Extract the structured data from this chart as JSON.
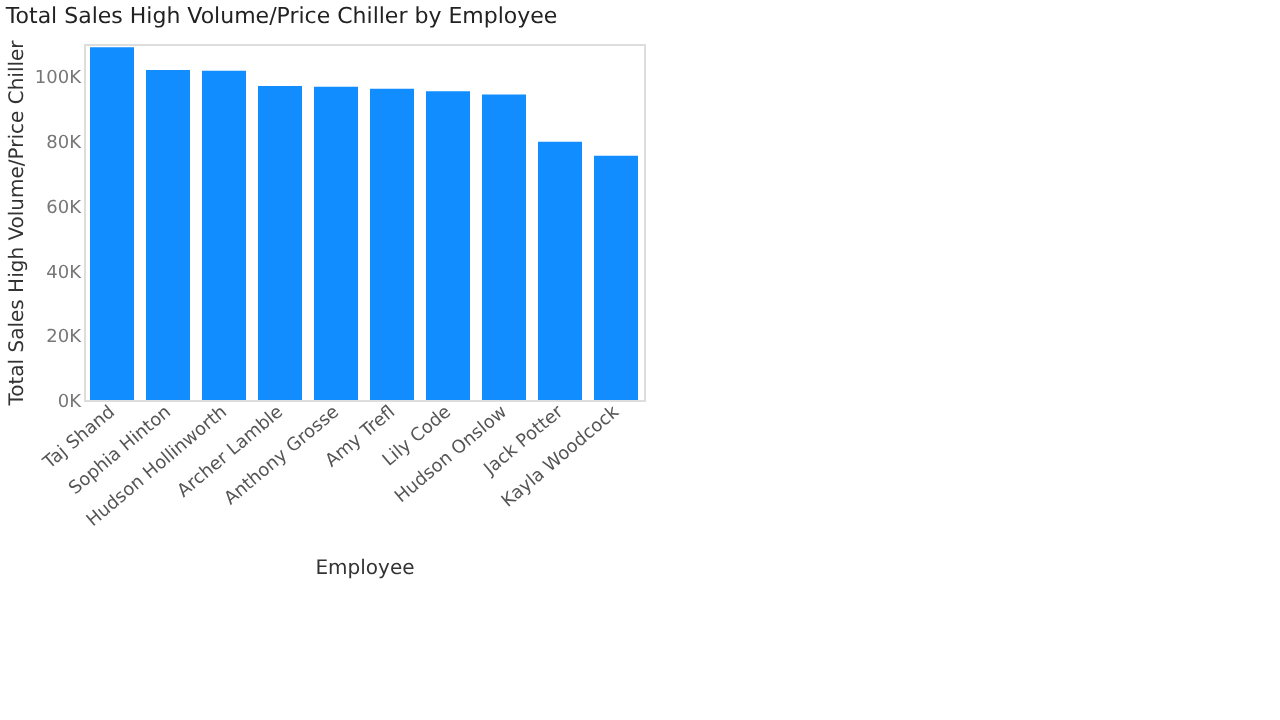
{
  "chart_data": {
    "type": "bar",
    "title": "Total Sales High Volume/Price Chiller by Employee",
    "xlabel": "Employee",
    "ylabel": "Total Sales High Volume/Price Chiller",
    "categories": [
      "Taj Shand",
      "Sophia Hinton",
      "Hudson Hollinworth",
      "Archer Lamble",
      "Anthony Grosse",
      "Amy Trefl",
      "Lily Code",
      "Hudson Onslow",
      "Jack Potter",
      "Kayla Woodcock"
    ],
    "values": [
      109000,
      102000,
      101700,
      97000,
      96800,
      96200,
      95400,
      94400,
      79800,
      75500
    ],
    "color": "#118dff",
    "ylim": [
      0,
      110000
    ],
    "yticks": [
      {
        "value": 0,
        "label": "0K"
      },
      {
        "value": 20000,
        "label": "20K"
      },
      {
        "value": 40000,
        "label": "40K"
      },
      {
        "value": 60000,
        "label": "60K"
      },
      {
        "value": 80000,
        "label": "80K"
      },
      {
        "value": 100000,
        "label": "100K"
      }
    ],
    "grid": false
  }
}
